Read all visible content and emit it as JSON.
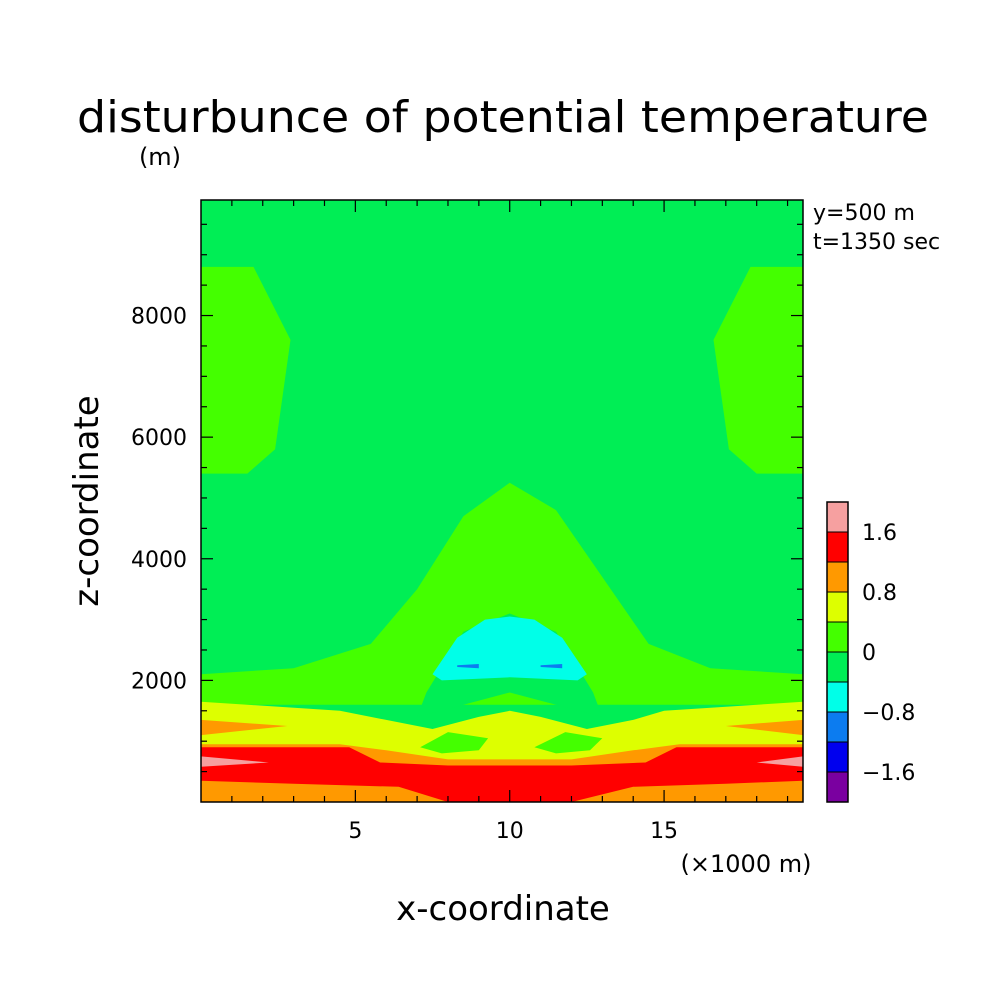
{
  "chart_data": {
    "type": "heatmap",
    "title": "disturbunce of potential temperature",
    "ylabel_unit": "(m)",
    "xlabel": "x-coordinate",
    "ylabel": "z-coordinate",
    "xunit": "(×1000 m)",
    "annotations": [
      "y=500 m",
      "t=1350 sec"
    ],
    "xlim": [
      0,
      19.5
    ],
    "ylim": [
      0,
      9900
    ],
    "x_ticks": [
      5,
      10,
      15
    ],
    "x_tick_labels": [
      "5",
      "10",
      "15"
    ],
    "y_ticks": [
      2000,
      4000,
      6000,
      8000
    ],
    "y_tick_labels": [
      "2000",
      "4000",
      "6000",
      "8000"
    ],
    "colorbar": {
      "levels": [
        -2.0,
        -1.6,
        -1.2,
        -0.8,
        -0.4,
        0.0,
        0.4,
        0.8,
        1.2,
        1.6,
        2.0
      ],
      "colors": [
        "#7a00a0",
        "#0000ee",
        "#0c7cf0",
        "#00ffe8",
        "#00ee55",
        "#44ff00",
        "#ddff00",
        "#ff9900",
        "#ff0000",
        "#f6a0a0"
      ],
      "tick_labels": [
        "1.6",
        "0.8",
        "0",
        "−0.8",
        "−1.6"
      ],
      "tick_values": [
        1.6,
        0.8,
        0.0,
        -0.8,
        -1.6
      ]
    },
    "regions": [
      {
        "level": -0.2,
        "color": "#00ee55",
        "desc": "background"
      },
      {
        "level": 0.2,
        "color": "#44ff00",
        "desc": "upper left lobe",
        "pts": [
          [
            0,
            8800
          ],
          [
            1.7,
            8800
          ],
          [
            2.9,
            7600
          ],
          [
            2.4,
            5800
          ],
          [
            1.5,
            5400
          ],
          [
            0,
            5400
          ]
        ]
      },
      {
        "level": 0.2,
        "color": "#44ff00",
        "desc": "upper right lobe",
        "pts": [
          [
            19.5,
            8800
          ],
          [
            17.8,
            8800
          ],
          [
            16.6,
            7600
          ],
          [
            17.1,
            5800
          ],
          [
            18.0,
            5400
          ],
          [
            19.5,
            5400
          ]
        ]
      },
      {
        "level": 0.2,
        "color": "#44ff00",
        "desc": "central dome",
        "pts": [
          [
            0,
            2100
          ],
          [
            3,
            2200
          ],
          [
            5.5,
            2600
          ],
          [
            7,
            3500
          ],
          [
            8.5,
            4700
          ],
          [
            10,
            5250
          ],
          [
            11.5,
            4800
          ],
          [
            13,
            3700
          ],
          [
            14.5,
            2600
          ],
          [
            16.5,
            2200
          ],
          [
            19.5,
            2100
          ],
          [
            19.5,
            1600
          ],
          [
            0,
            1600
          ]
        ]
      },
      {
        "level": -0.2,
        "color": "#00ee55",
        "desc": "inner dip",
        "pts": [
          [
            7,
            1400
          ],
          [
            7.3,
            1800
          ],
          [
            8.5,
            2800
          ],
          [
            10,
            3100
          ],
          [
            11.5,
            2800
          ],
          [
            12.7,
            1800
          ],
          [
            13,
            1400
          ],
          [
            11.5,
            1600
          ],
          [
            10,
            1800
          ],
          [
            8.5,
            1600
          ]
        ]
      },
      {
        "level": -0.6,
        "color": "#00ffe8",
        "desc": "cold bubble",
        "pts": [
          [
            7.5,
            2100
          ],
          [
            8.3,
            2700
          ],
          [
            9.2,
            3000
          ],
          [
            10,
            3050
          ],
          [
            10.8,
            3000
          ],
          [
            11.7,
            2700
          ],
          [
            12.5,
            2100
          ],
          [
            12.2,
            2000
          ],
          [
            10,
            2050
          ],
          [
            7.8,
            2000
          ]
        ]
      },
      {
        "level": -1.0,
        "color": "#0c7cf0",
        "desc": "bubble core line left",
        "pts": [
          [
            8.3,
            2250
          ],
          [
            9.0,
            2270
          ],
          [
            9.0,
            2200
          ],
          [
            8.3,
            2220
          ]
        ]
      },
      {
        "level": -1.0,
        "color": "#0c7cf0",
        "desc": "bubble core line right",
        "pts": [
          [
            11.0,
            2250
          ],
          [
            11.7,
            2270
          ],
          [
            11.7,
            2200
          ],
          [
            11.0,
            2220
          ]
        ]
      },
      {
        "level": 0.6,
        "color": "#ddff00",
        "desc": "lower yellow band",
        "pts": [
          [
            0,
            1650
          ],
          [
            4.5,
            1500
          ],
          [
            6,
            1350
          ],
          [
            7.5,
            1200
          ],
          [
            9,
            1400
          ],
          [
            10,
            1500
          ],
          [
            11,
            1400
          ],
          [
            12.5,
            1200
          ],
          [
            14,
            1350
          ],
          [
            15,
            1500
          ],
          [
            19.5,
            1650
          ],
          [
            19.5,
            0
          ],
          [
            0,
            0
          ]
        ]
      },
      {
        "level": 0.2,
        "color": "#44ff00",
        "desc": "small green patch left",
        "pts": [
          [
            7.1,
            900
          ],
          [
            8,
            1150
          ],
          [
            9.3,
            1050
          ],
          [
            9.0,
            850
          ],
          [
            7.8,
            800
          ]
        ]
      },
      {
        "level": 0.2,
        "color": "#44ff00",
        "desc": "small green patch right",
        "pts": [
          [
            10.8,
            900
          ],
          [
            11.8,
            1150
          ],
          [
            13.0,
            1050
          ],
          [
            12.6,
            850
          ],
          [
            11.5,
            800
          ]
        ]
      },
      {
        "level": 1.0,
        "color": "#ff9900",
        "desc": "orange band",
        "pts": [
          [
            0,
            950
          ],
          [
            4.5,
            950
          ],
          [
            6,
            850
          ],
          [
            8,
            700
          ],
          [
            12,
            700
          ],
          [
            14,
            850
          ],
          [
            15.5,
            950
          ],
          [
            19.5,
            950
          ],
          [
            19.5,
            0
          ],
          [
            0,
            0
          ]
        ]
      },
      {
        "level": 1.0,
        "color": "#ff9900",
        "desc": "orange tongue left",
        "pts": [
          [
            0,
            1350
          ],
          [
            2.8,
            1250
          ],
          [
            0,
            1100
          ]
        ]
      },
      {
        "level": 1.0,
        "color": "#ff9900",
        "desc": "orange tongue right",
        "pts": [
          [
            19.5,
            1350
          ],
          [
            17.0,
            1250
          ],
          [
            19.5,
            1100
          ]
        ]
      },
      {
        "level": 1.4,
        "color": "#ff0000",
        "desc": "red band",
        "pts": [
          [
            0,
            900
          ],
          [
            4.8,
            900
          ],
          [
            5.8,
            650
          ],
          [
            8,
            600
          ],
          [
            12,
            600
          ],
          [
            14.4,
            650
          ],
          [
            15.4,
            900
          ],
          [
            19.5,
            900
          ],
          [
            19.5,
            350
          ],
          [
            17,
            300
          ],
          [
            14,
            250
          ],
          [
            12,
            0
          ],
          [
            8,
            0
          ],
          [
            6.4,
            250
          ],
          [
            3,
            300
          ],
          [
            0,
            350
          ]
        ]
      },
      {
        "level": 1.8,
        "color": "#f6a0a0",
        "desc": "pink sliver left",
        "pts": [
          [
            0,
            750
          ],
          [
            2.2,
            650
          ],
          [
            0,
            580
          ]
        ]
      },
      {
        "level": 1.8,
        "color": "#f6a0a0",
        "desc": "pink sliver right",
        "pts": [
          [
            19.5,
            750
          ],
          [
            18.0,
            650
          ],
          [
            19.5,
            580
          ]
        ]
      }
    ]
  }
}
